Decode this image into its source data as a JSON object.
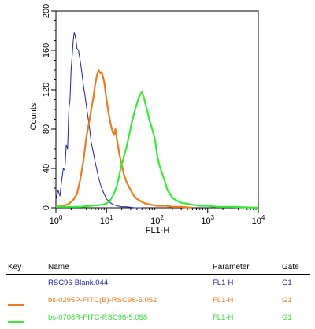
{
  "chart_data": {
    "type": "line",
    "xlabel": "FL1-H",
    "ylabel": "Counts",
    "x_scale": "log",
    "xlim": [
      1,
      10000
    ],
    "ylim": [
      0,
      200
    ],
    "x_ticks": [
      1,
      10,
      100,
      1000,
      10000
    ],
    "x_tick_labels": [
      {
        "base": "10",
        "exp": "0"
      },
      {
        "base": "10",
        "exp": "1"
      },
      {
        "base": "10",
        "exp": "2"
      },
      {
        "base": "10",
        "exp": "3"
      },
      {
        "base": "10",
        "exp": "4"
      }
    ],
    "y_ticks": [
      0,
      40,
      80,
      120,
      160,
      200
    ],
    "y_tick_labels": [
      "0",
      "40",
      "80",
      "120",
      "160",
      "200"
    ],
    "grid": false,
    "series": [
      {
        "name": "RSC96-Blank.044",
        "color": "#1f1fa8",
        "x": [
          1.0,
          1.1,
          1.2,
          1.3,
          1.4,
          1.5,
          1.6,
          1.7,
          1.8,
          1.9,
          2.0,
          2.1,
          2.2,
          2.3,
          2.4,
          2.5,
          2.6,
          2.8,
          3.0,
          3.2,
          3.5,
          3.8,
          4.2,
          4.6,
          5.0,
          5.5,
          6.0,
          6.5,
          7.0,
          8.0,
          9.0,
          10,
          11,
          12,
          14,
          16,
          20,
          25,
          35,
          50
        ],
        "y": [
          8,
          18,
          12,
          28,
          40,
          38,
          64,
          60,
          100,
          110,
          140,
          155,
          170,
          178,
          175,
          170,
          162,
          160,
          150,
          140,
          124,
          112,
          96,
          82,
          66,
          56,
          46,
          38,
          30,
          20,
          14,
          9,
          7,
          5,
          3,
          2,
          1,
          1,
          0,
          0
        ]
      },
      {
        "name": "bs-0295P-FITC(B)-RSC96-5.052",
        "color": "#f07a1a",
        "x": [
          1.0,
          1.4,
          1.8,
          2.2,
          2.6,
          3.0,
          3.5,
          4.0,
          4.5,
          5.0,
          5.5,
          6.0,
          6.5,
          7.0,
          7.5,
          8.0,
          8.5,
          9.0,
          10,
          11,
          12,
          13,
          14,
          15,
          16,
          18,
          20,
          22,
          25,
          30,
          35,
          40,
          50,
          60,
          80,
          100,
          150,
          200,
          300,
          500
        ],
        "y": [
          1,
          2,
          4,
          8,
          14,
          28,
          48,
          72,
          86,
          100,
          112,
          126,
          135,
          140,
          137,
          138,
          133,
          128,
          110,
          96,
          86,
          78,
          74,
          80,
          70,
          54,
          44,
          34,
          26,
          18,
          12,
          9,
          6,
          4,
          3,
          2,
          2,
          1,
          1,
          0
        ]
      },
      {
        "name": "bs-0708R-FITC-RSC96-5.058",
        "color": "#33ee33",
        "x": [
          1.0,
          3.0,
          5.0,
          8.0,
          10,
          12,
          14,
          16,
          18,
          20,
          22,
          25,
          28,
          32,
          36,
          40,
          45,
          50,
          55,
          60,
          65,
          70,
          80,
          90,
          100,
          110,
          120,
          140,
          160,
          180,
          200,
          250,
          300,
          400,
          500,
          700,
          1000,
          1500,
          3000,
          10000
        ],
        "y": [
          1,
          1,
          2,
          3,
          4,
          8,
          14,
          22,
          34,
          44,
          52,
          62,
          74,
          88,
          98,
          106,
          114,
          118,
          112,
          104,
          97,
          90,
          80,
          70,
          54,
          44,
          38,
          28,
          18,
          14,
          10,
          7,
          5,
          4,
          3,
          2,
          2,
          1,
          1,
          0
        ]
      }
    ]
  },
  "key_table": {
    "headers": {
      "key": "Key",
      "name": "Name",
      "parameter": "Parameter",
      "gate": "Gate"
    },
    "rows": [
      {
        "name": "RSC96-Blank.044",
        "parameter": "FL1-H",
        "gate": "G1",
        "color": "#1f1fa8",
        "text_color": "#1f1fa8"
      },
      {
        "name": "bs-0295P-FITC(B)-RSC96-5.052",
        "parameter": "FL1-H",
        "gate": "G1",
        "color": "#f07a1a",
        "text_color": "#f07a1a"
      },
      {
        "name": "bs-0708R-FITC-RSC96-5.058",
        "parameter": "FL1-H",
        "gate": "G1",
        "color": "#33ee33",
        "text_color": "#33dd33"
      }
    ]
  }
}
